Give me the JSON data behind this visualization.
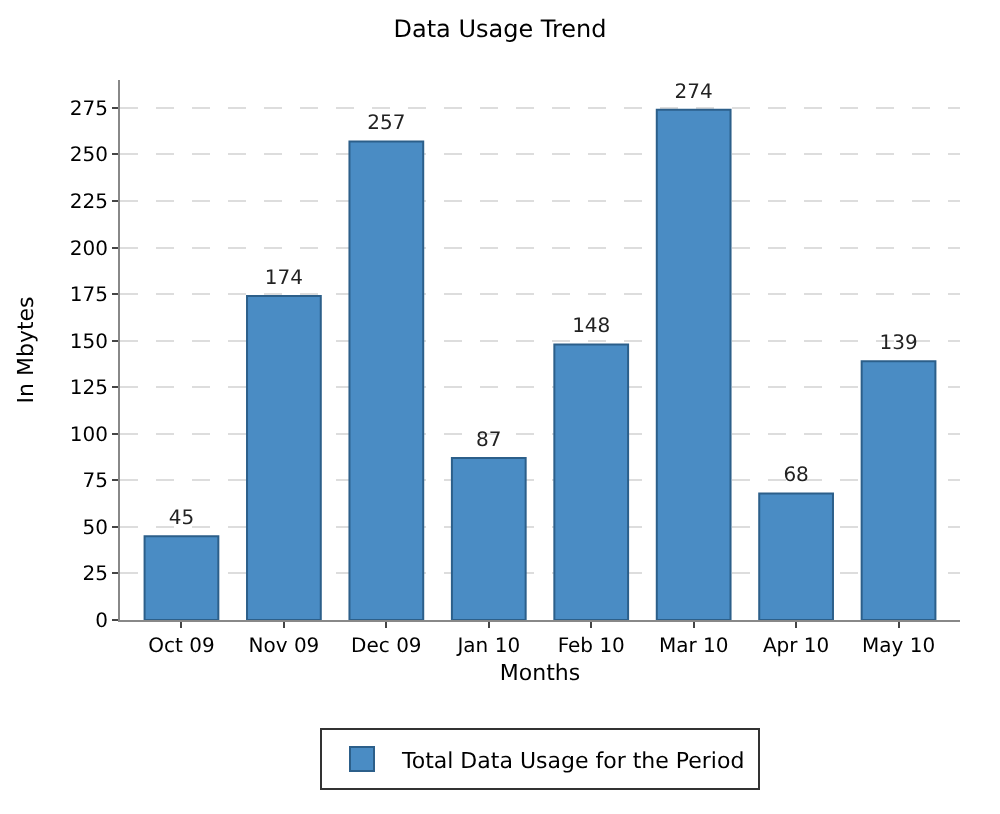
{
  "chart_data": {
    "type": "bar",
    "title": "Data Usage Trend",
    "xlabel": "Months",
    "ylabel": "In Mbytes",
    "categories": [
      "Oct 09",
      "Nov 09",
      "Dec 09",
      "Jan 10",
      "Feb 10",
      "Mar 10",
      "Apr 10",
      "May 10"
    ],
    "series": [
      {
        "name": "Total Data Usage for the Period",
        "color": "#4a8cc4",
        "values": [
          45,
          174,
          257,
          87,
          148,
          274,
          68,
          139
        ]
      }
    ],
    "ylim": [
      0,
      290
    ],
    "yticks": [
      0,
      25,
      50,
      75,
      100,
      125,
      150,
      175,
      200,
      225,
      250,
      275
    ],
    "grid": "y",
    "legend": "bottom",
    "data_labels": true
  }
}
